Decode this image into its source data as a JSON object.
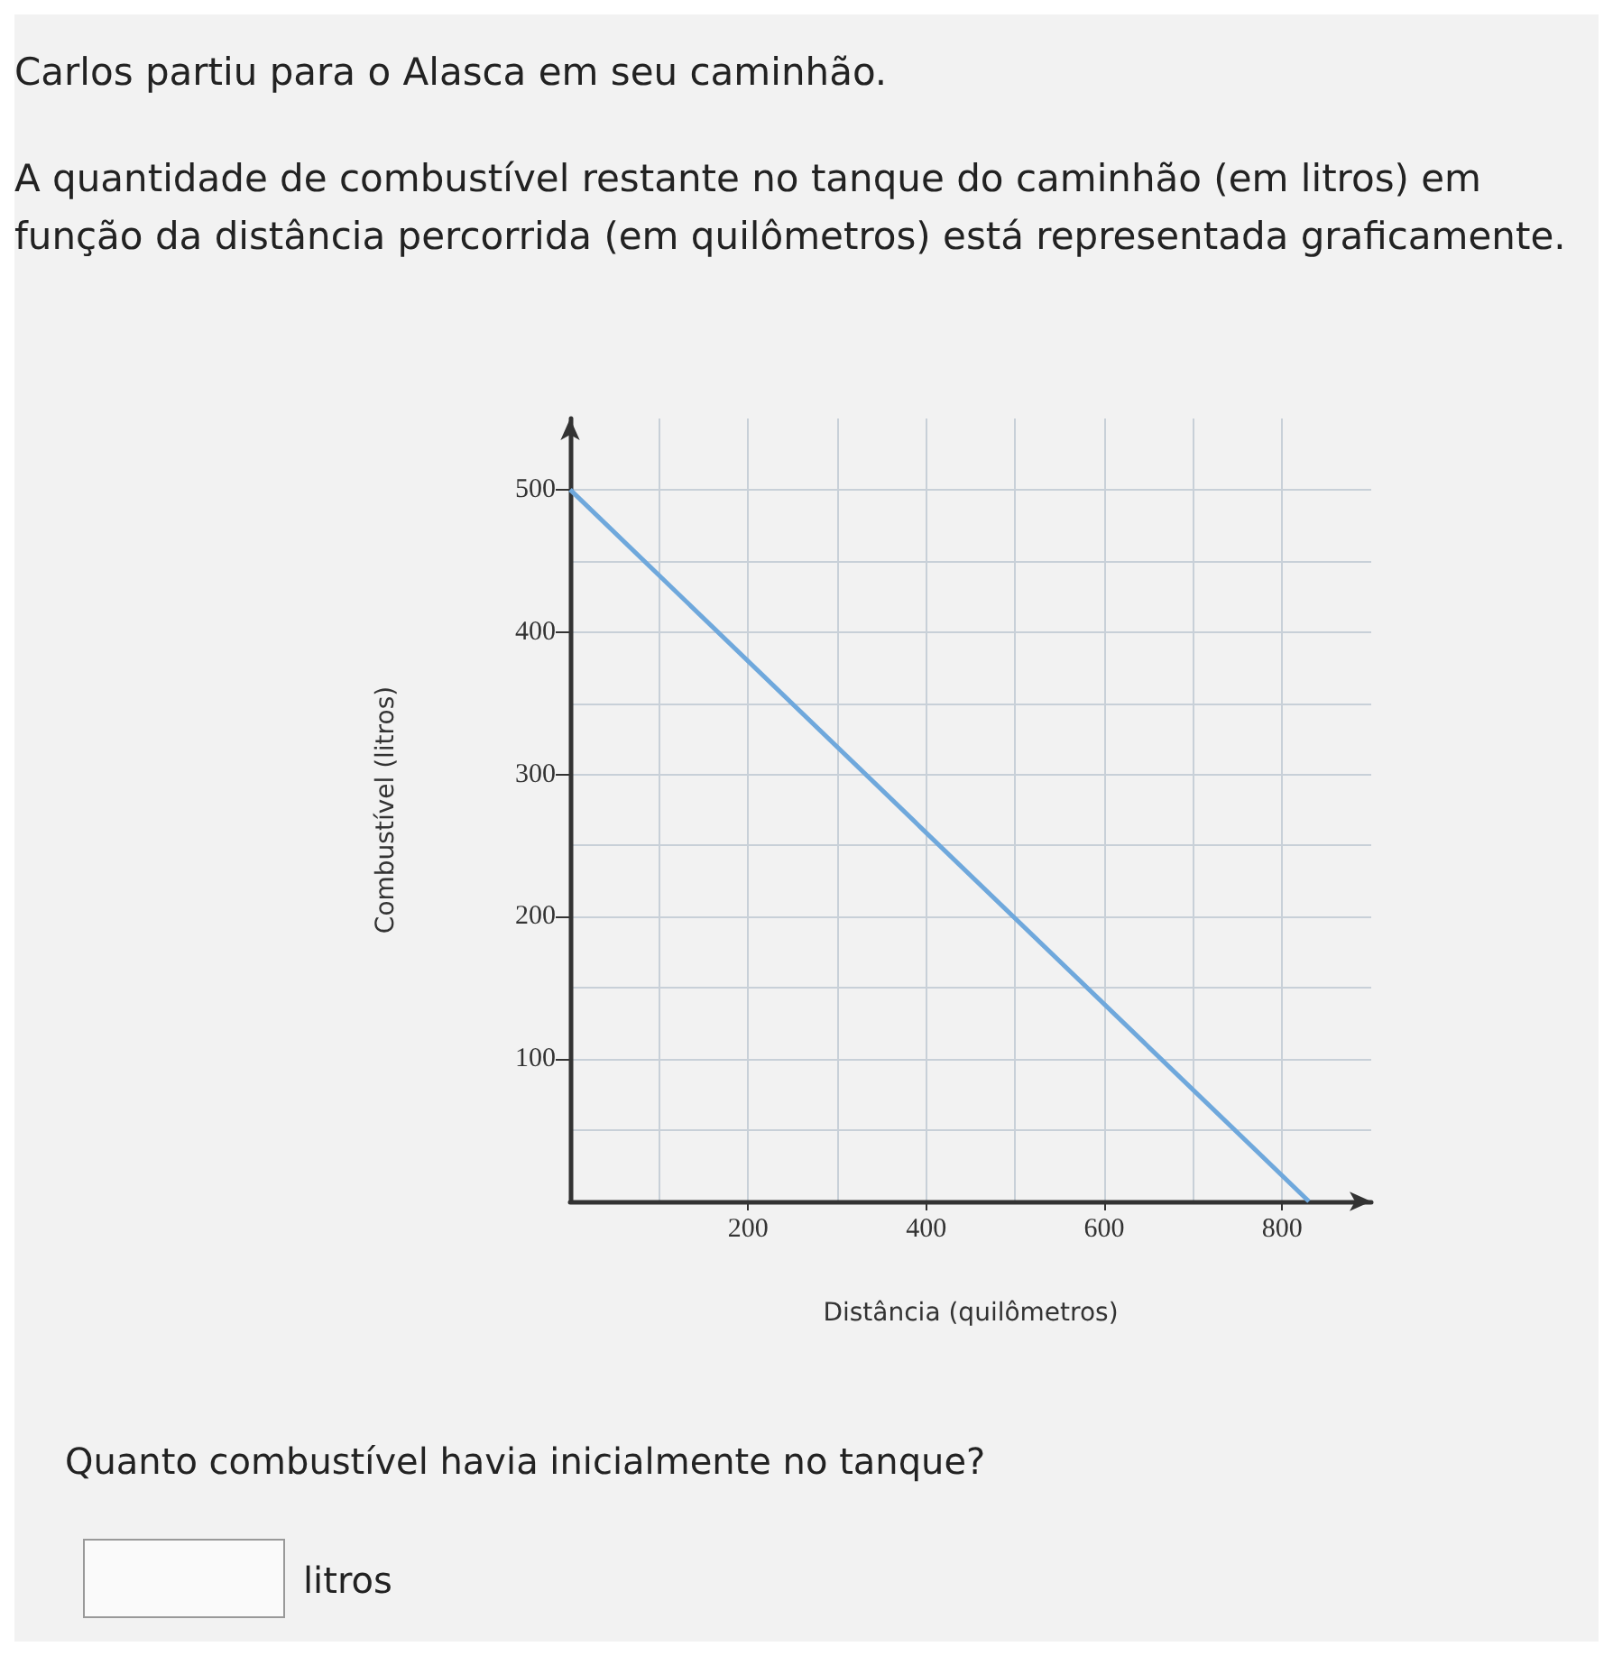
{
  "chart_data": {
    "type": "line",
    "title": "Carlos partiu para o Alasca em seu caminhão.",
    "subtitle": "A quantidade de combustível restante no tanque do caminhão (em litros) em função da distância percorrida (em quilômetros) está representada graficamente.",
    "xlabel": "Distância (quilômetros)",
    "ylabel": "Combustível (litros)",
    "x": [
      0,
      830
    ],
    "series": [
      {
        "color": "#6fa8dc",
        "values": [
          500,
          0
        ]
      }
    ],
    "xlim": [
      0,
      900
    ],
    "ylim": [
      0,
      550
    ],
    "xticks": [
      200,
      400,
      600,
      800
    ],
    "yticks": [
      100,
      200,
      300,
      400,
      500
    ],
    "grid": true,
    "marker": "none",
    "annotations": [
      "Quanto combustível havia inicialmente no tanque?",
      "litros"
    ]
  }
}
